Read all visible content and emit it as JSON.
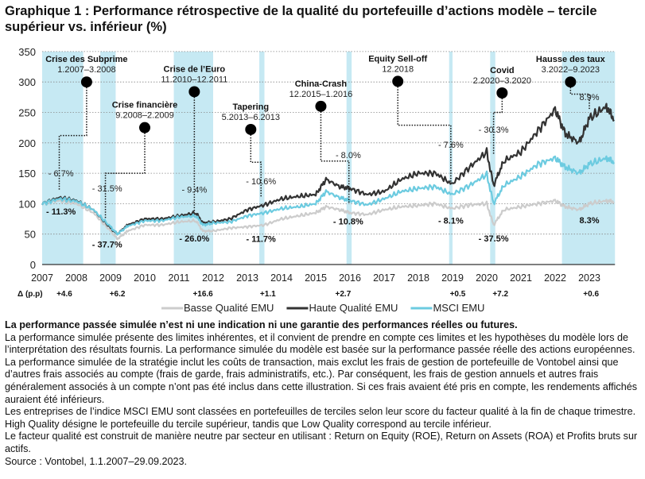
{
  "title": "Graphique 1 : Performance rétrospective de la qualité du portefeuille d’actions modèle – tercile supérieur vs. inférieur (%)",
  "chart_data": {
    "type": "line",
    "title": "Graphique 1 : Performance rétrospective de la qualité du portefeuille d’actions modèle – tercile supérieur vs. inférieur (%)",
    "xlabel": "",
    "ylabel": "",
    "xlim": [
      2007,
      2023.75
    ],
    "ylim": [
      0,
      350
    ],
    "yticks": [
      0,
      50,
      100,
      150,
      200,
      250,
      300,
      350
    ],
    "xticks": [
      "2007",
      "2008",
      "2009",
      "2010",
      "2011",
      "2012",
      "2013",
      "2014",
      "2015",
      "2016",
      "2017",
      "2018",
      "2019",
      "2020",
      "2021",
      "2022",
      "2023"
    ],
    "grid": "horizontal dotted",
    "legend": "bottom",
    "x": [
      2007.0,
      2007.5,
      2008.0,
      2008.5,
      2009.0,
      2009.2,
      2009.5,
      2010.0,
      2010.5,
      2011.0,
      2011.5,
      2011.7,
      2012.0,
      2012.5,
      2013.0,
      2013.5,
      2014.0,
      2014.5,
      2015.0,
      2015.3,
      2015.7,
      2016.0,
      2016.5,
      2017.0,
      2017.5,
      2018.0,
      2018.5,
      2018.98,
      2019.5,
      2020.0,
      2020.2,
      2020.5,
      2021.0,
      2021.5,
      2022.0,
      2022.3,
      2022.7,
      2023.0,
      2023.5,
      2023.72
    ],
    "series": [
      {
        "name": "Basse Qualité EMU",
        "color": "#cccccc",
        "values": [
          100,
          105,
          100,
          85,
          55,
          42,
          55,
          65,
          65,
          70,
          72,
          55,
          55,
          60,
          62,
          65,
          75,
          80,
          85,
          95,
          90,
          85,
          82,
          90,
          95,
          97,
          100,
          92,
          98,
          100,
          65,
          90,
          95,
          100,
          105,
          95,
          90,
          100,
          105,
          103
        ]
      },
      {
        "name": "Haute Qualité EMU",
        "color": "#333333",
        "values": [
          100,
          110,
          105,
          90,
          60,
          50,
          65,
          75,
          75,
          80,
          85,
          68,
          70,
          75,
          90,
          98,
          108,
          112,
          115,
          140,
          128,
          125,
          115,
          120,
          140,
          150,
          150,
          132,
          160,
          185,
          130,
          170,
          185,
          220,
          255,
          215,
          200,
          240,
          260,
          238
        ]
      },
      {
        "name": "MSCI EMU",
        "color": "#6ccbe0",
        "values": [
          100,
          108,
          104,
          90,
          62,
          50,
          63,
          72,
          72,
          78,
          80,
          65,
          68,
          70,
          80,
          85,
          92,
          95,
          100,
          120,
          110,
          105,
          98,
          108,
          120,
          125,
          128,
          115,
          130,
          148,
          100,
          130,
          145,
          165,
          175,
          160,
          150,
          165,
          175,
          168
        ]
      }
    ],
    "shaded_periods": [
      [
        2007.0,
        2008.2
      ],
      [
        2008.7,
        2009.15
      ],
      [
        2010.85,
        2012.0
      ],
      [
        2013.35,
        2013.5
      ],
      [
        2015.9,
        2016.05
      ],
      [
        2018.9,
        2019.0
      ],
      [
        2020.1,
        2020.25
      ],
      [
        2022.2,
        2023.75
      ]
    ],
    "shade_color": "#c6e9f3",
    "events": [
      {
        "name": "Crise des Subprime",
        "period": "1.2007–3.2008",
        "x": 2008.3,
        "y": 300,
        "high": "- 6.7%",
        "low": "- 11.3%"
      },
      {
        "name": "Crise financière",
        "period": "9.2008–2.2009",
        "x": 2010.0,
        "y": 225,
        "high": "- 31.5%",
        "low": "- 37.7%"
      },
      {
        "name": "Crise de l’Euro",
        "period": "11.2010–12.2011",
        "x": 2011.45,
        "y": 284,
        "high": "- 9.4%",
        "low": "- 26.0%"
      },
      {
        "name": "Tapering",
        "period": "5.2013–6.2013",
        "x": 2013.1,
        "y": 222,
        "high": "- 10.6%",
        "low": "- 11.7%"
      },
      {
        "name": "China-Crash",
        "period": "12.2015–1.2016",
        "x": 2015.15,
        "y": 260,
        "high": "- 8.0%",
        "low": "- 10.8%"
      },
      {
        "name": "Equity Sell-off",
        "period": "12.2018",
        "x": 2017.4,
        "y": 301,
        "high": "- 7.6%",
        "low": "- 8.1%"
      },
      {
        "name": "Covid",
        "period": "2.2020–3.2020",
        "x": 2020.45,
        "y": 282,
        "high": "- 30.3%",
        "low": "- 37.5%"
      },
      {
        "name": "Hausse des taux",
        "period": "3.2022–9.2023",
        "x": 2022.45,
        "y": 300,
        "high": "8.9%",
        "low": "8.3%"
      }
    ],
    "delta_label": "Δ (p.p)",
    "deltas": [
      {
        "x": 2007.65,
        "v": "+4.6"
      },
      {
        "x": 2009.2,
        "v": "+6.2"
      },
      {
        "x": 2011.7,
        "v": "+16.6"
      },
      {
        "x": 2013.6,
        "v": "+1.1"
      },
      {
        "x": 2015.8,
        "v": "+2.7"
      },
      {
        "x": 2019.15,
        "v": "+0.5"
      },
      {
        "x": 2020.4,
        "v": "+7.2"
      },
      {
        "x": 2023.05,
        "v": "+0.6"
      }
    ]
  },
  "notes": {
    "disclaimer": "La performance passée simulée n’est ni une indication ni une garantie des performances réelles ou futures.",
    "p1": "La performance simulée présente des limites inhérentes, et il convient de prendre en compte ces limites et les hypothèses du modèle lors de l’interprétation des résultats fournis. La performance simulée du modèle est basée sur la performance passée réelle des actions européennes. La performance simulée de la stratégie inclut les coûts de transaction, mais exclut les frais de gestion de portefeuille de Vontobel ainsi que d’autres frais associés au compte (frais de garde, frais administratifs, etc.). Par conséquent, les frais de gestion annuels et autres frais généralement associés à un compte n’ont pas été inclus dans cette illustration. Si ces frais avaient été pris en compte, les rendements affichés auraient été inférieurs.",
    "p2": "Les entreprises de l’indice MSCI EMU sont classées en portefeuilles de terciles selon leur score du facteur qualité à la fin de chaque trimestre. High Quality désigne le portefeuille du tercile supérieur, tandis que Low Quality correspond au tercile inférieur.",
    "p3": "Le facteur qualité est construit de manière neutre par secteur en utilisant : Return on Equity (ROE), Return on Assets (ROA) et Profits bruts sur actifs.",
    "source": "Source : Vontobel, 1.1.2007–29.09.2023."
  }
}
